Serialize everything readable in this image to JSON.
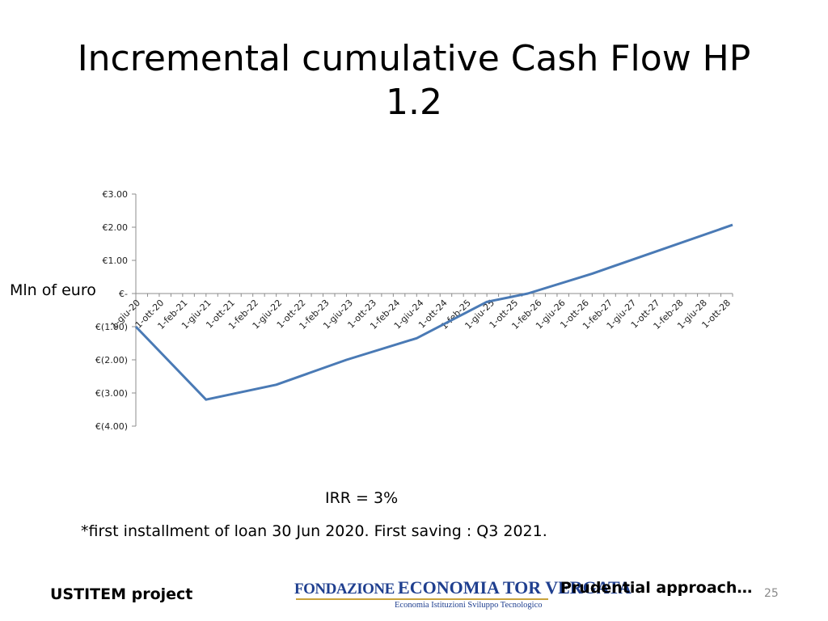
{
  "slide": {
    "title_line1": "Incremental cumulative Cash Flow HP",
    "title_line2": "1.2",
    "side_label": "Mln of euro",
    "irr": "IRR = 3%",
    "footnote": "*first installment of loan 30 Jun 2020. First saving : Q3 2021.",
    "project": "USTITEM project",
    "approach": "Prudential approach…",
    "page_number": "25",
    "logo_top_a": "FONDAZIONE ",
    "logo_top_b": "ECONOMIA TOR VERGATA",
    "logo_sub": "Economia  Istituzioni  Sviluppo Tecnologico"
  },
  "chart_data": {
    "type": "line",
    "title": "",
    "xlabel": "",
    "ylabel": "Mln of euro",
    "ylim": [
      -4,
      3
    ],
    "y_ticks": [
      3,
      2,
      1,
      0,
      -1,
      -2,
      -3,
      -4
    ],
    "y_tick_labels": [
      "€3.00",
      "€2.00",
      "€1.00",
      "€-",
      "€(1.00)",
      "€(2.00)",
      "€(3.00)",
      "€(4.00)"
    ],
    "x_tick_labels": [
      "1-giu-20",
      "1-ott-20",
      "1-feb-21",
      "1-giu-21",
      "1-ott-21",
      "1-feb-22",
      "1-giu-22",
      "1-ott-22",
      "1-feb-23",
      "1-giu-23",
      "1-ott-23",
      "1-feb-24",
      "1-giu-24",
      "1-ott-24",
      "1-feb-25",
      "1-giu-25",
      "1-ott-25",
      "1-feb-26",
      "1-giu-26",
      "1-ott-26",
      "1-feb-27",
      "1-giu-27",
      "1-ott-27",
      "1-feb-28",
      "1-giu-28",
      "1-ott-28"
    ],
    "x_start": "2020-06",
    "x_end": "2028-12",
    "series_color": "#4a7ab5",
    "series": [
      {
        "name": "",
        "points": [
          {
            "x": "2020-06",
            "y": -1.0
          },
          {
            "x": "2021-06",
            "y": -3.2
          },
          {
            "x": "2022-06",
            "y": -2.75
          },
          {
            "x": "2023-06",
            "y": -2.0
          },
          {
            "x": "2024-06",
            "y": -1.35
          },
          {
            "x": "2025-06",
            "y": -0.25
          },
          {
            "x": "2026-01",
            "y": 0.0
          },
          {
            "x": "2026-12",
            "y": 0.6
          },
          {
            "x": "2028-12",
            "y": 2.07
          }
        ]
      }
    ],
    "grid": false,
    "legend": "none"
  }
}
